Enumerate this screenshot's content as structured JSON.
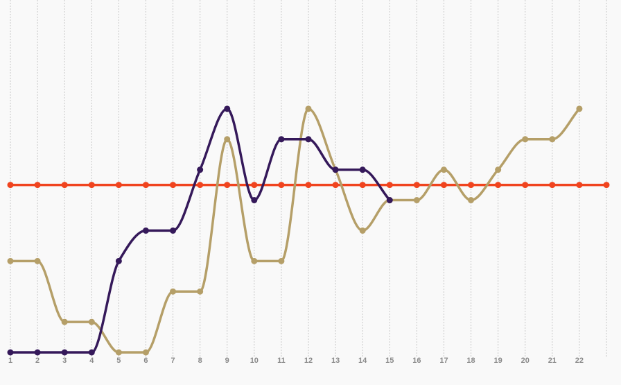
{
  "chart_data": {
    "type": "line",
    "categories": [
      "1",
      "2",
      "3",
      "4",
      "5",
      "6",
      "7",
      "8",
      "9",
      "10",
      "11",
      "12",
      "13",
      "14",
      "15",
      "16",
      "17",
      "18",
      "19",
      "20",
      "21",
      "22",
      null
    ],
    "series": [
      {
        "color": "#f0441f",
        "values": [
          5.5,
          5.5,
          5.5,
          5.5,
          5.5,
          5.5,
          5.5,
          5.5,
          5.5,
          5.5,
          5.5,
          5.5,
          5.5,
          5.5,
          5.5,
          5.5,
          5.5,
          5.5,
          5.5,
          5.5,
          5.5,
          5.5,
          5.5
        ]
      },
      {
        "color": "#b59f68",
        "values": [
          3,
          3,
          1,
          1,
          0,
          0,
          2,
          2,
          7,
          3,
          3,
          8,
          6,
          4,
          5,
          5,
          6,
          5,
          6,
          7,
          7,
          8,
          null
        ]
      },
      {
        "color": "#35195a",
        "values": [
          0,
          0,
          0,
          0,
          3,
          4,
          4,
          6,
          8,
          5,
          7,
          7,
          6,
          6,
          5,
          null,
          null,
          null,
          null,
          null,
          null,
          null,
          null
        ]
      }
    ],
    "ylim": [
      0,
      11.3
    ],
    "grid": true
  }
}
